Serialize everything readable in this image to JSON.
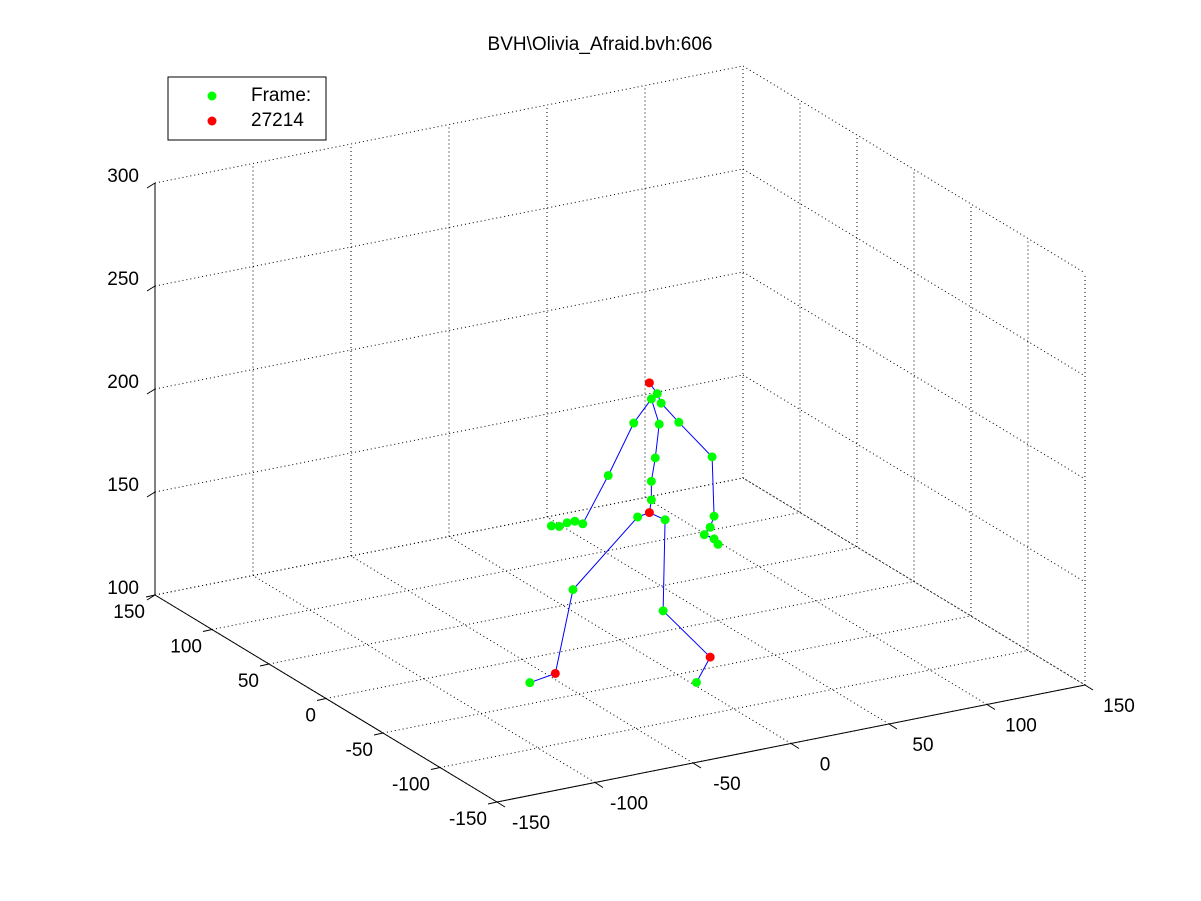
{
  "chart_data": {
    "type": "scatter3d",
    "title": "BVH\\Olivia_Afraid.bvh:606",
    "xlim": [
      -150,
      150
    ],
    "ylim": [
      -150,
      150
    ],
    "zlim": [
      100,
      300
    ],
    "xticks": [
      -150,
      -100,
      -50,
      0,
      50,
      100,
      150
    ],
    "yticks": [
      -150,
      -100,
      -50,
      0,
      50,
      100,
      150
    ],
    "zticks": [
      100,
      150,
      200,
      250,
      300
    ],
    "grid": true,
    "legend": "upper left",
    "series": [
      {
        "name": "Frame:",
        "color": "#00ff00",
        "x": [
          19,
          16,
          21,
          7,
          20,
          30,
          18,
          47,
          -6,
          16,
          16,
          9,
          23,
          -19,
          -35,
          -31,
          -27,
          -23,
          48,
          46,
          43,
          48,
          50,
          -24,
          22,
          -46,
          39
        ],
        "y": [
          0,
          0,
          0,
          0,
          0,
          0,
          0,
          0,
          0,
          0,
          0,
          0,
          0,
          0,
          0,
          0,
          0,
          0,
          0,
          0,
          0,
          0,
          0,
          0,
          0,
          0,
          0
        ],
        "z": [
          216,
          214,
          211,
          204,
          201,
          200,
          185,
          180,
          181,
          174,
          165,
          158,
          154,
          160,
          162,
          161,
          162,
          162,
          151,
          146,
          143,
          140,
          137,
          129,
          110,
          88,
          72
        ]
      },
      {
        "name": "27214",
        "color": "#ff0000",
        "x": [
          15,
          15,
          -33,
          46
        ],
        "y": [
          0,
          0,
          0,
          0
        ],
        "z": [
          222,
          159,
          90,
          83
        ]
      }
    ],
    "bones": {
      "color": "#0000ff",
      "links": [
        [
          [
            1,
            0
          ],
          [
            0,
            0
          ]
        ],
        [
          [
            0,
            0
          ],
          [
            0,
            1
          ]
        ],
        [
          [
            0,
            1
          ],
          [
            0,
            3
          ]
        ],
        [
          [
            0,
            3
          ],
          [
            0,
            8
          ]
        ],
        [
          [
            0,
            8
          ],
          [
            0,
            13
          ]
        ],
        [
          [
            0,
            13
          ],
          [
            0,
            17
          ]
        ],
        [
          [
            0,
            17
          ],
          [
            0,
            16
          ]
        ],
        [
          [
            0,
            16
          ],
          [
            0,
            15
          ]
        ],
        [
          [
            0,
            15
          ],
          [
            0,
            14
          ]
        ],
        [
          [
            0,
            0
          ],
          [
            0,
            2
          ]
        ],
        [
          [
            0,
            2
          ],
          [
            0,
            5
          ]
        ],
        [
          [
            0,
            5
          ],
          [
            0,
            7
          ]
        ],
        [
          [
            0,
            7
          ],
          [
            0,
            18
          ]
        ],
        [
          [
            0,
            18
          ],
          [
            0,
            19
          ]
        ],
        [
          [
            0,
            19
          ],
          [
            0,
            20
          ]
        ],
        [
          [
            0,
            20
          ],
          [
            0,
            21
          ]
        ],
        [
          [
            0,
            21
          ],
          [
            0,
            22
          ]
        ],
        [
          [
            0,
            1
          ],
          [
            0,
            4
          ]
        ],
        [
          [
            0,
            4
          ],
          [
            0,
            6
          ]
        ],
        [
          [
            0,
            6
          ],
          [
            0,
            9
          ]
        ],
        [
          [
            0,
            9
          ],
          [
            0,
            10
          ]
        ],
        [
          [
            0,
            10
          ],
          [
            1,
            1
          ]
        ],
        [
          [
            1,
            1
          ],
          [
            0,
            11
          ]
        ],
        [
          [
            0,
            11
          ],
          [
            0,
            23
          ]
        ],
        [
          [
            0,
            23
          ],
          [
            1,
            2
          ]
        ],
        [
          [
            1,
            2
          ],
          [
            0,
            25
          ]
        ],
        [
          [
            1,
            1
          ],
          [
            0,
            12
          ]
        ],
        [
          [
            0,
            12
          ],
          [
            0,
            24
          ]
        ],
        [
          [
            0,
            24
          ],
          [
            1,
            3
          ]
        ],
        [
          [
            1,
            3
          ],
          [
            0,
            26
          ]
        ]
      ]
    }
  }
}
